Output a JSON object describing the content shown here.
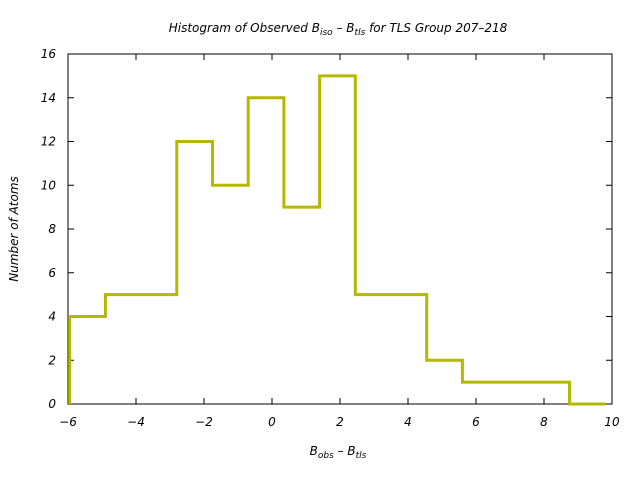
{
  "chart_data": {
    "type": "histogram",
    "title": {
      "prefix": "Histogram of Observed B",
      "sub1": "iso",
      "middle": " – B",
      "sub2": "tls",
      "suffix": " for TLS Group 207–218"
    },
    "xlabel": {
      "prefix": "B",
      "sub1": "obs",
      "middle": " – B",
      "sub2": "tls"
    },
    "ylabel": "Number of Atoms",
    "xlim": [
      -6,
      10
    ],
    "ylim": [
      0,
      16
    ],
    "x_ticks": [
      -6,
      -4,
      -2,
      0,
      2,
      4,
      6,
      8,
      10
    ],
    "x_tick_labels": [
      "−6",
      "−4",
      "−2",
      "0",
      "2",
      "4",
      "6",
      "8",
      "10"
    ],
    "y_ticks": [
      0,
      2,
      4,
      6,
      8,
      10,
      12,
      14,
      16
    ],
    "y_tick_labels": [
      "0",
      "2",
      "4",
      "6",
      "8",
      "10",
      "12",
      "14",
      "16"
    ],
    "grid": false,
    "series_color": "#b5b800",
    "bin_edges": [
      -5.95,
      -4.9,
      -3.85,
      -2.8,
      -1.75,
      -0.7,
      0.35,
      1.4,
      2.45,
      3.5,
      4.55,
      5.6,
      6.65,
      7.7,
      8.75,
      9.8
    ],
    "counts": [
      4,
      5,
      5,
      12,
      10,
      14,
      9,
      15,
      5,
      5,
      2,
      1,
      1,
      1,
      0
    ]
  }
}
